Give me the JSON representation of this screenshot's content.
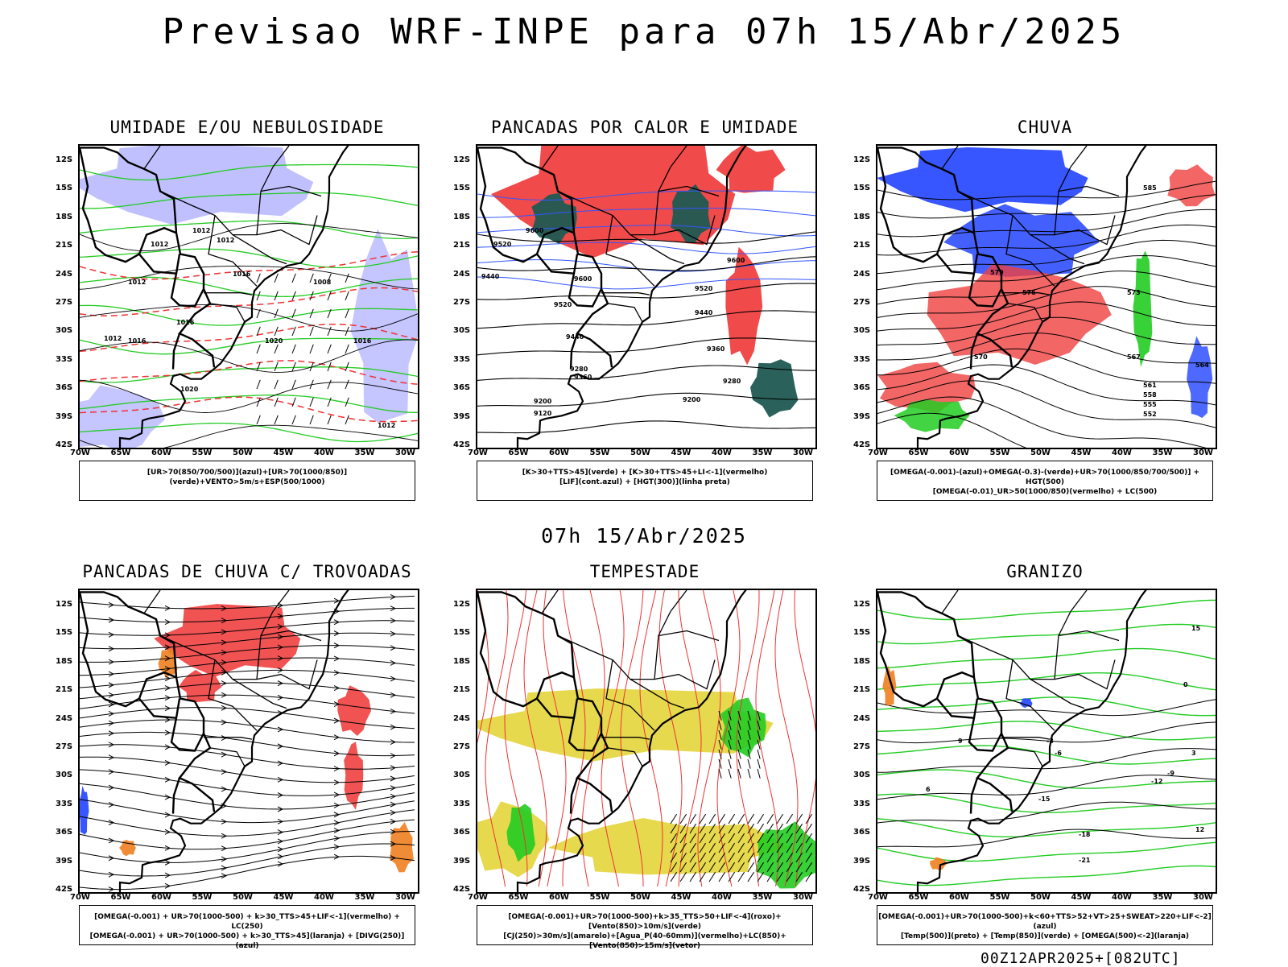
{
  "title": "Previsao WRF-INPE  para 07h 15/Abr/2025",
  "mid_date": "07h 15/Abr/2025",
  "footer": "00Z12APR2025+[082UTC]",
  "lat_labels": [
    "12S",
    "15S",
    "18S",
    "21S",
    "24S",
    "27S",
    "30S",
    "33S",
    "36S",
    "39S",
    "42S"
  ],
  "lon_labels": [
    "70W",
    "65W",
    "60W",
    "55W",
    "50W",
    "45W",
    "40W",
    "35W",
    "30W"
  ],
  "panels": [
    {
      "title": "UMIDADE E/OU NEBULOSIDADE",
      "legend1": "[UR>70(850/700/500)](azul)+[UR>70(1000/850)](verde)+VENTO>5m/s+ESP(500/1000)",
      "legend2": "",
      "contour_labels": [
        "1012",
        "1012",
        "1012",
        "1016",
        "1012",
        "1016",
        "1020",
        "1012",
        "1016",
        "1020",
        "1008",
        "1012",
        "1016"
      ]
    },
    {
      "title": "PANCADAS POR CALOR E UMIDADE",
      "legend1": "[K>30+TTS>45](verde) + [K>30+TTS>45+LI<-1](vermelho)",
      "legend2": "[LIF](cont.azul) + [HGT(300)](linha preta)",
      "contour_labels": [
        "9600",
        "9520",
        "9440",
        "9600",
        "9520",
        "9440",
        "9360",
        "9280",
        "9200",
        "9120",
        "9600",
        "9520",
        "9440",
        "9360",
        "9280",
        "9200"
      ]
    },
    {
      "title": "CHUVA",
      "legend1": "[OMEGA(-0.001)-(azul)+OMEGA(-0.3)-(verde)+UR>70(1000/850/700/500)] + HGT(500)",
      "legend2": "[OMEGA(-0.01)_UR>50(1000/850)(vermelho) + LC(500)",
      "contour_labels": [
        "585",
        "579",
        "576",
        "573",
        "570",
        "567",
        "564",
        "561",
        "558",
        "555",
        "552"
      ]
    },
    {
      "title": "PANCADAS DE CHUVA C/ TROVOADAS",
      "legend1": "[OMEGA(-0.001) + UR>70(1000-500) + k>30_TTS>45+LIF<-1](vermelho) + LC(250)",
      "legend2": "[OMEGA(-0.001) + UR>70(1000-500) + k>30_TTS>45](laranja) + [DIVG(250)](azul)",
      "contour_labels": []
    },
    {
      "title": "TEMPESTADE",
      "legend1": "[OMEGA(-0.001)+UR>70(1000-500)+k>35_TTS>50+LIF<-4](roxo)+[Vento(850)>10m/s](verde)",
      "legend2": "[CJ(250)>30m/s](amarelo)+[Agua_P(40-60mm)](vermelho)+LC(850)+[Vento(850)>15m/s](vetor)",
      "contour_labels": []
    },
    {
      "title": "GRANIZO",
      "legend1": "[OMEGA(-0.001)+UR>70(1000-500)+k<60+TTS>52+VT>25+SWEAT>220+LIF<-2](azul)",
      "legend2": "[Temp(500)](preto) + [Temp(850)](verde) + [OMEGA(500)<-2](laranja)",
      "contour_labels": [
        "-3",
        "-6",
        "-9",
        "-12",
        "-15",
        "-18",
        "-21",
        "0",
        "3",
        "6",
        "9",
        "12",
        "15"
      ]
    }
  ]
}
